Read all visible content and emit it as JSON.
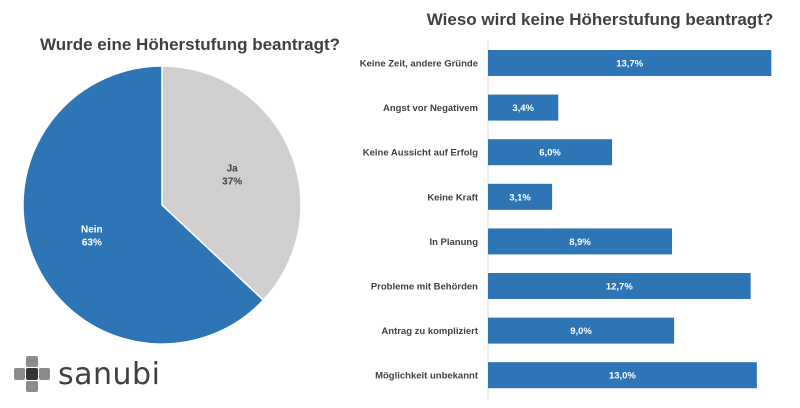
{
  "logo": {
    "text": "sanubi"
  },
  "chart_data": [
    {
      "type": "pie",
      "title": "Wurde eine Höherstufung beantragt?",
      "slices": [
        {
          "name": "Nein",
          "value": 63,
          "label": "63%",
          "color": "#2e75b6"
        },
        {
          "name": "Ja",
          "value": 37,
          "label": "37%",
          "color": "#d0cece"
        }
      ]
    },
    {
      "type": "bar",
      "orientation": "horizontal",
      "title": "Wieso wird keine Höherstufung beantragt?",
      "categories": [
        "Keine Zeit, andere Gründe",
        "Angst vor Negativem",
        "Keine Aussicht auf Erfolg",
        "Keine Kraft",
        "In Planung",
        "Probleme mit Behörden",
        "Antrag zu kompliziert",
        "Möglichkeit unbekannt"
      ],
      "values": [
        13.7,
        3.4,
        6.0,
        3.1,
        8.9,
        12.7,
        9.0,
        13.0
      ],
      "value_labels": [
        "13,7%",
        "3,4%",
        "6,0%",
        "3,1%",
        "8,9%",
        "12,7%",
        "9,0%",
        "13,0%"
      ],
      "xlim": [
        0,
        14.7
      ],
      "color": "#2e75b6"
    }
  ]
}
